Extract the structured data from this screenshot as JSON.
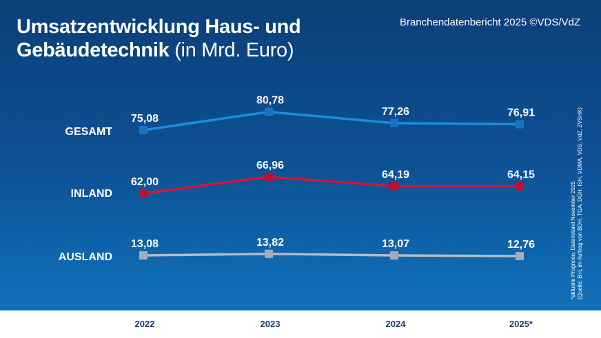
{
  "header": {
    "title_line1": "Umsatzentwicklung Haus- und",
    "title_line2": "Gebäudetechnik",
    "title_unit": "(in Mrd. Euro)",
    "source": "Branchendatenbericht 2025 ©VDS/VdZ"
  },
  "footnote": {
    "line1": "*aktuelle Prognose, Datenstand November 2025",
    "line2": "(Quelle: B+L im Auftrag von BDH, TGA, DGH, ISH, VDMA, VDS, VdZ, ZVSHK)"
  },
  "chart_data": {
    "type": "line",
    "categories": [
      "2022",
      "2023",
      "2024",
      "2025*"
    ],
    "series": [
      {
        "name": "GESAMT",
        "values": [
          75.08,
          80.78,
          77.26,
          76.91
        ],
        "labels": [
          "75,08",
          "80,78",
          "77,26",
          "76,91"
        ],
        "color": "#1a8ee0",
        "marker": "#1a73c4"
      },
      {
        "name": "INLAND",
        "values": [
          62.0,
          66.96,
          64.19,
          64.15
        ],
        "labels": [
          "62,00",
          "66,96",
          "64,19",
          "64,15"
        ],
        "color": "#d4143c",
        "marker": "#c0102e"
      },
      {
        "name": "AUSLAND",
        "values": [
          13.08,
          13.82,
          13.07,
          12.76
        ],
        "labels": [
          "13,08",
          "13,82",
          "13,07",
          "12,76"
        ],
        "color": "#b5bcc6",
        "marker": "#a5acb5"
      }
    ],
    "grid": false,
    "legend": "row labels left"
  },
  "colors": {
    "background_top": "#0c3f78",
    "background_bottom": "#1072bb",
    "axis_text": "#1a3b6a"
  }
}
